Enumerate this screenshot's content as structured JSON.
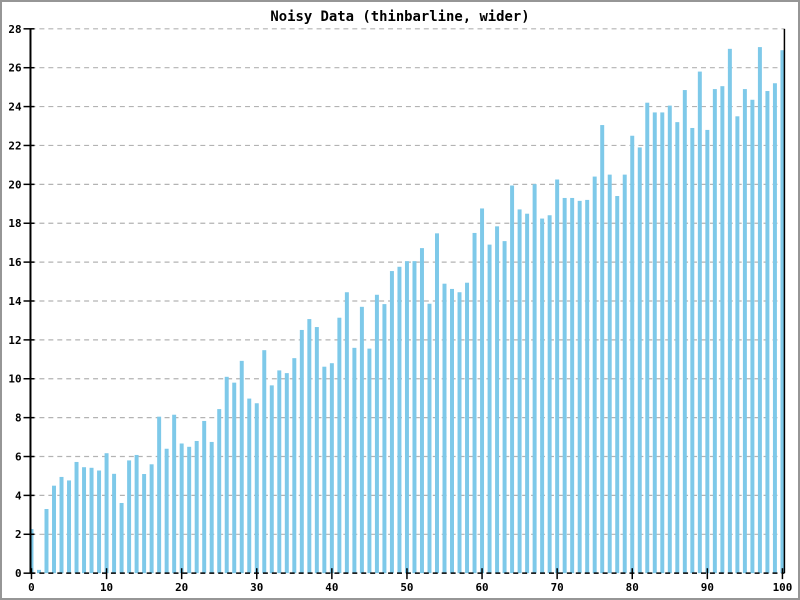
{
  "window": {
    "background": "#ffffff",
    "border_color": "#969696"
  },
  "chart_data": {
    "type": "bar",
    "title": "Noisy Data (thinbarline, wider)",
    "style": "thin vertical bars on white, horizontal dashed gridlines, dashed x-axis baseline",
    "x_start": 0,
    "x_step": 1,
    "values": [
      2.27,
      0.17,
      3.3,
      4.5,
      4.95,
      4.77,
      5.72,
      5.45,
      5.42,
      5.28,
      6.17,
      5.11,
      3.61,
      5.8,
      6.08,
      5.1,
      5.6,
      8.05,
      6.4,
      8.15,
      6.67,
      6.5,
      6.8,
      7.83,
      6.75,
      8.44,
      10.1,
      9.8,
      10.92,
      8.98,
      8.74,
      11.47,
      9.66,
      10.43,
      10.29,
      11.06,
      12.51,
      13.07,
      12.66,
      10.62,
      10.8,
      13.14,
      14.45,
      11.59,
      13.7,
      11.55,
      14.32,
      13.84,
      15.54,
      15.76,
      16.05,
      16.05,
      16.72,
      13.86,
      17.48,
      14.89,
      14.62,
      14.45,
      14.94,
      17.5,
      18.76,
      16.9,
      17.84,
      17.08,
      19.94,
      18.71,
      18.49,
      20.01,
      18.24,
      18.41,
      20.25,
      19.3,
      19.3,
      19.15,
      19.2,
      20.4,
      23.05,
      20.5,
      19.4,
      20.5,
      22.5,
      21.9,
      24.2,
      23.7,
      23.7,
      24.05,
      23.2,
      24.85,
      22.9,
      25.8,
      22.8,
      24.9,
      25.05,
      26.97,
      23.5,
      24.9,
      24.35,
      27.06,
      24.8,
      25.2,
      26.9
    ],
    "xlim": [
      0,
      100
    ],
    "ylim": [
      0,
      28
    ],
    "x_ticks": [
      0,
      10,
      20,
      30,
      40,
      50,
      60,
      70,
      80,
      90,
      100
    ],
    "y_ticks": [
      0,
      2,
      4,
      6,
      8,
      10,
      12,
      14,
      16,
      18,
      20,
      22,
      24,
      26,
      28
    ],
    "grid": "horizontal dashed lines at every y tick",
    "legend": "none",
    "bar_color": "#7EC9E9",
    "grid_color": "#B3B3B3",
    "axis_color": "#000000",
    "text_color": "#000000"
  }
}
